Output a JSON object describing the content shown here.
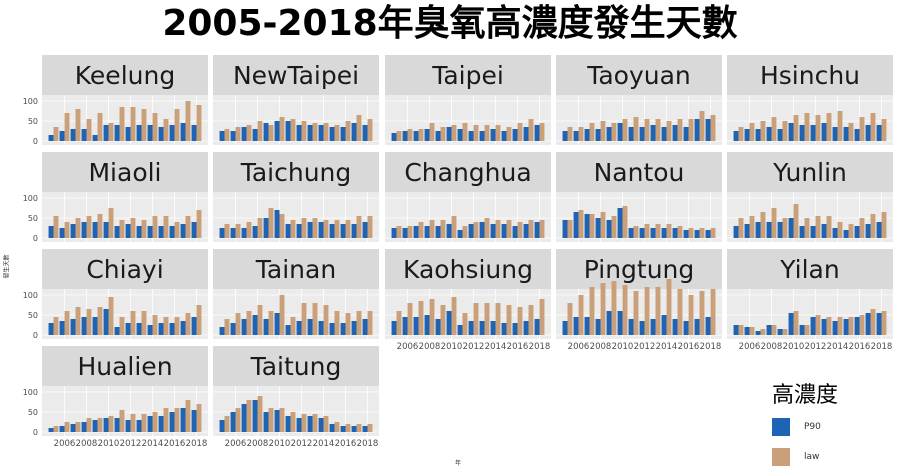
{
  "title": "2005-2018年臭氧高濃度發生天數",
  "chart_data": {
    "type": "bar",
    "facet": true,
    "xlabel": "年",
    "ylabel": "發生天數",
    "ylim": [
      0,
      110
    ],
    "yticks": [
      0,
      50,
      100
    ],
    "xticks": [
      2006,
      2008,
      2010,
      2012,
      2014,
      2016,
      2018
    ],
    "years": [
      2005,
      2006,
      2007,
      2008,
      2009,
      2010,
      2011,
      2012,
      2013,
      2014,
      2015,
      2016,
      2017,
      2018
    ],
    "legend": {
      "title": "高濃度",
      "position": "bottom-right"
    },
    "series_names": [
      "P90",
      "law"
    ],
    "colors": {
      "P90": "#1f63b4",
      "law": "#c9a07a",
      "panel_bg": "#ebebeb",
      "strip_bg": "#d9d9d9",
      "grid": "#ffffff"
    },
    "panels": [
      {
        "name": "Keelung",
        "P90": [
          15,
          25,
          30,
          30,
          15,
          40,
          40,
          35,
          40,
          40,
          35,
          40,
          45,
          40
        ],
        "law": [
          35,
          70,
          80,
          55,
          70,
          45,
          85,
          85,
          80,
          70,
          55,
          80,
          100,
          90
        ]
      },
      {
        "name": "NewTaipei",
        "P90": [
          25,
          25,
          35,
          30,
          45,
          50,
          50,
          40,
          40,
          40,
          35,
          35,
          45,
          40
        ],
        "law": [
          30,
          35,
          40,
          50,
          40,
          60,
          55,
          50,
          45,
          45,
          40,
          50,
          65,
          55
        ]
      },
      {
        "name": "Taipei",
        "P90": [
          20,
          25,
          25,
          30,
          25,
          35,
          30,
          25,
          25,
          30,
          25,
          30,
          35,
          40
        ],
        "law": [
          25,
          30,
          30,
          45,
          35,
          40,
          45,
          40,
          40,
          40,
          35,
          45,
          55,
          45
        ]
      },
      {
        "name": "Taoyuan",
        "P90": [
          25,
          25,
          30,
          30,
          35,
          45,
          35,
          35,
          40,
          35,
          40,
          35,
          55,
          55
        ],
        "law": [
          35,
          35,
          45,
          50,
          45,
          55,
          60,
          55,
          55,
          50,
          55,
          55,
          75,
          65
        ]
      },
      {
        "name": "Hsinchu",
        "P90": [
          25,
          30,
          30,
          35,
          30,
          45,
          40,
          40,
          45,
          35,
          35,
          30,
          40,
          40
        ],
        "law": [
          35,
          45,
          50,
          60,
          50,
          65,
          70,
          65,
          70,
          75,
          45,
          60,
          70,
          55
        ]
      },
      {
        "name": "Miaoli",
        "P90": [
          30,
          25,
          35,
          40,
          40,
          40,
          30,
          35,
          30,
          30,
          30,
          30,
          35,
          40
        ],
        "law": [
          55,
          40,
          50,
          55,
          60,
          75,
          45,
          50,
          45,
          55,
          55,
          40,
          55,
          70
        ]
      },
      {
        "name": "Taichung",
        "P90": [
          25,
          25,
          25,
          30,
          50,
          70,
          35,
          35,
          40,
          40,
          35,
          35,
          35,
          40
        ],
        "law": [
          35,
          35,
          40,
          50,
          75,
          60,
          45,
          50,
          50,
          45,
          45,
          45,
          55,
          55
        ]
      },
      {
        "name": "Changhua",
        "P90": [
          25,
          25,
          30,
          30,
          30,
          35,
          20,
          35,
          40,
          35,
          35,
          30,
          35,
          40
        ],
        "law": [
          30,
          30,
          40,
          45,
          45,
          55,
          30,
          40,
          50,
          45,
          45,
          40,
          45,
          45
        ]
      },
      {
        "name": "Nantou",
        "P90": [
          45,
          65,
          60,
          50,
          45,
          75,
          25,
          25,
          25,
          25,
          25,
          20,
          20,
          20
        ],
        "law": [
          45,
          70,
          60,
          65,
          55,
          80,
          30,
          35,
          35,
          35,
          30,
          25,
          25,
          25
        ]
      },
      {
        "name": "Yunlin",
        "P90": [
          30,
          35,
          40,
          40,
          40,
          50,
          30,
          30,
          35,
          25,
          20,
          30,
          35,
          40
        ],
        "law": [
          50,
          55,
          65,
          75,
          50,
          85,
          50,
          55,
          55,
          40,
          35,
          50,
          60,
          65
        ]
      },
      {
        "name": "Chiayi",
        "P90": [
          30,
          35,
          40,
          45,
          45,
          65,
          20,
          30,
          30,
          25,
          30,
          30,
          35,
          45
        ],
        "law": [
          45,
          60,
          70,
          65,
          70,
          95,
          45,
          60,
          60,
          50,
          45,
          45,
          55,
          75
        ]
      },
      {
        "name": "Tainan",
        "P90": [
          20,
          30,
          40,
          50,
          40,
          55,
          25,
          35,
          40,
          35,
          30,
          30,
          35,
          40
        ],
        "law": [
          40,
          55,
          60,
          75,
          60,
          100,
          45,
          80,
          80,
          75,
          60,
          55,
          60,
          60
        ]
      },
      {
        "name": "Kaohsiung",
        "P90": [
          35,
          45,
          45,
          50,
          40,
          60,
          25,
          35,
          35,
          35,
          30,
          30,
          35,
          40
        ],
        "law": [
          60,
          80,
          85,
          90,
          75,
          95,
          55,
          80,
          80,
          80,
          75,
          70,
          75,
          90
        ]
      },
      {
        "name": "Pingtung",
        "P90": [
          35,
          45,
          45,
          40,
          60,
          60,
          40,
          35,
          40,
          50,
          40,
          35,
          40,
          45
        ],
        "law": [
          80,
          100,
          120,
          130,
          135,
          125,
          110,
          120,
          120,
          140,
          115,
          100,
          110,
          115
        ]
      },
      {
        "name": "Yilan",
        "P90": [
          25,
          20,
          10,
          25,
          15,
          55,
          25,
          45,
          40,
          35,
          40,
          45,
          55,
          55
        ],
        "law": [
          25,
          20,
          15,
          25,
          15,
          60,
          25,
          50,
          45,
          45,
          45,
          50,
          65,
          60
        ]
      },
      {
        "name": "Hualien",
        "P90": [
          10,
          15,
          20,
          25,
          30,
          35,
          35,
          30,
          30,
          40,
          40,
          50,
          60,
          55
        ],
        "law": [
          15,
          25,
          25,
          35,
          35,
          40,
          55,
          45,
          45,
          50,
          60,
          60,
          80,
          70
        ]
      },
      {
        "name": "Taitung",
        "P90": [
          30,
          50,
          70,
          80,
          50,
          55,
          40,
          35,
          40,
          35,
          20,
          15,
          15,
          15
        ],
        "law": [
          40,
          60,
          80,
          90,
          60,
          60,
          50,
          45,
          45,
          40,
          25,
          20,
          20,
          20
        ]
      }
    ]
  }
}
